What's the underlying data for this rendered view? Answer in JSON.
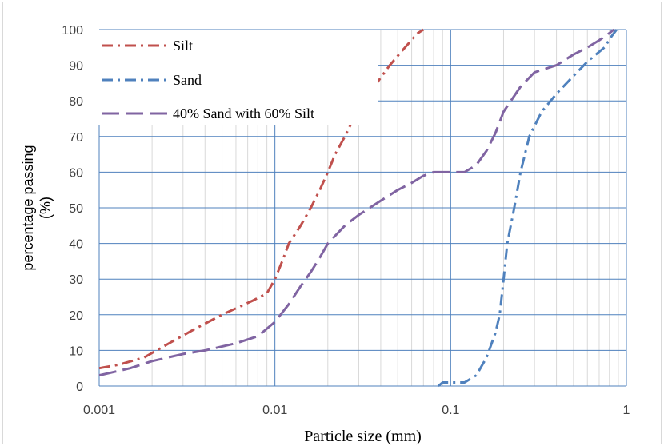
{
  "chart_data": {
    "type": "line",
    "xlabel": "Particle size (mm)",
    "ylabel": [
      "percentage passing",
      "(%)"
    ],
    "x_scale": "log",
    "xlim": [
      0.001,
      1
    ],
    "ylim": [
      0,
      100
    ],
    "x_ticks": [
      {
        "value": 0.001,
        "label": "0.001"
      },
      {
        "value": 0.01,
        "label": "0.01"
      },
      {
        "value": 0.1,
        "label": "0.1"
      },
      {
        "value": 1,
        "label": "1"
      }
    ],
    "y_ticks": [
      {
        "value": 0,
        "label": "0"
      },
      {
        "value": 10,
        "label": "10"
      },
      {
        "value": 20,
        "label": "20"
      },
      {
        "value": 30,
        "label": "30"
      },
      {
        "value": 40,
        "label": "40"
      },
      {
        "value": 50,
        "label": "50"
      },
      {
        "value": 60,
        "label": "60"
      },
      {
        "value": 70,
        "label": "70"
      },
      {
        "value": 80,
        "label": "80"
      },
      {
        "value": 90,
        "label": "90"
      },
      {
        "value": 100,
        "label": "100"
      }
    ],
    "grid": true,
    "legend_position": "top-left",
    "series": [
      {
        "name": "Silt",
        "color": "#c0504d",
        "dash": "dash-dot",
        "points": [
          [
            0.001,
            5
          ],
          [
            0.0013,
            6
          ],
          [
            0.0018,
            8
          ],
          [
            0.0025,
            12
          ],
          [
            0.0035,
            16
          ],
          [
            0.005,
            20
          ],
          [
            0.0075,
            24
          ],
          [
            0.009,
            26
          ],
          [
            0.01,
            30
          ],
          [
            0.011,
            35
          ],
          [
            0.012,
            40
          ],
          [
            0.014,
            45
          ],
          [
            0.016,
            50
          ],
          [
            0.018,
            55
          ],
          [
            0.02,
            60
          ],
          [
            0.022,
            65
          ],
          [
            0.025,
            70
          ],
          [
            0.028,
            75
          ],
          [
            0.033,
            80
          ],
          [
            0.038,
            85
          ],
          [
            0.045,
            90
          ],
          [
            0.055,
            95
          ],
          [
            0.065,
            99
          ],
          [
            0.07,
            100
          ]
        ]
      },
      {
        "name": "Sand",
        "color": "#4f81bd",
        "dash": "dash-dot",
        "points": [
          [
            0.085,
            0
          ],
          [
            0.09,
            1
          ],
          [
            0.1,
            1
          ],
          [
            0.12,
            1
          ],
          [
            0.14,
            3
          ],
          [
            0.16,
            8
          ],
          [
            0.18,
            15
          ],
          [
            0.19,
            20
          ],
          [
            0.2,
            30
          ],
          [
            0.21,
            40
          ],
          [
            0.23,
            50
          ],
          [
            0.25,
            60
          ],
          [
            0.28,
            70
          ],
          [
            0.33,
            77
          ],
          [
            0.4,
            82
          ],
          [
            0.5,
            87
          ],
          [
            0.6,
            91
          ],
          [
            0.75,
            95
          ],
          [
            0.82,
            98
          ],
          [
            0.88,
            100
          ]
        ]
      },
      {
        "name": "40% Sand with 60% Silt",
        "color": "#8064a2",
        "dash": "long-dash",
        "points": [
          [
            0.001,
            3
          ],
          [
            0.0015,
            5
          ],
          [
            0.002,
            7
          ],
          [
            0.003,
            9
          ],
          [
            0.004,
            10
          ],
          [
            0.006,
            12
          ],
          [
            0.008,
            14
          ],
          [
            0.01,
            18
          ],
          [
            0.012,
            23
          ],
          [
            0.014,
            28
          ],
          [
            0.016,
            32
          ],
          [
            0.018,
            36
          ],
          [
            0.02,
            40
          ],
          [
            0.025,
            45
          ],
          [
            0.03,
            48
          ],
          [
            0.04,
            52
          ],
          [
            0.05,
            55
          ],
          [
            0.06,
            57
          ],
          [
            0.07,
            59
          ],
          [
            0.08,
            60
          ],
          [
            0.1,
            60
          ],
          [
            0.12,
            60
          ],
          [
            0.14,
            62
          ],
          [
            0.16,
            66
          ],
          [
            0.18,
            71
          ],
          [
            0.2,
            77
          ],
          [
            0.25,
            84
          ],
          [
            0.3,
            88
          ],
          [
            0.4,
            90
          ],
          [
            0.5,
            93
          ],
          [
            0.6,
            95
          ],
          [
            0.7,
            97
          ],
          [
            0.8,
            99
          ],
          [
            0.85,
            100
          ]
        ]
      }
    ]
  }
}
